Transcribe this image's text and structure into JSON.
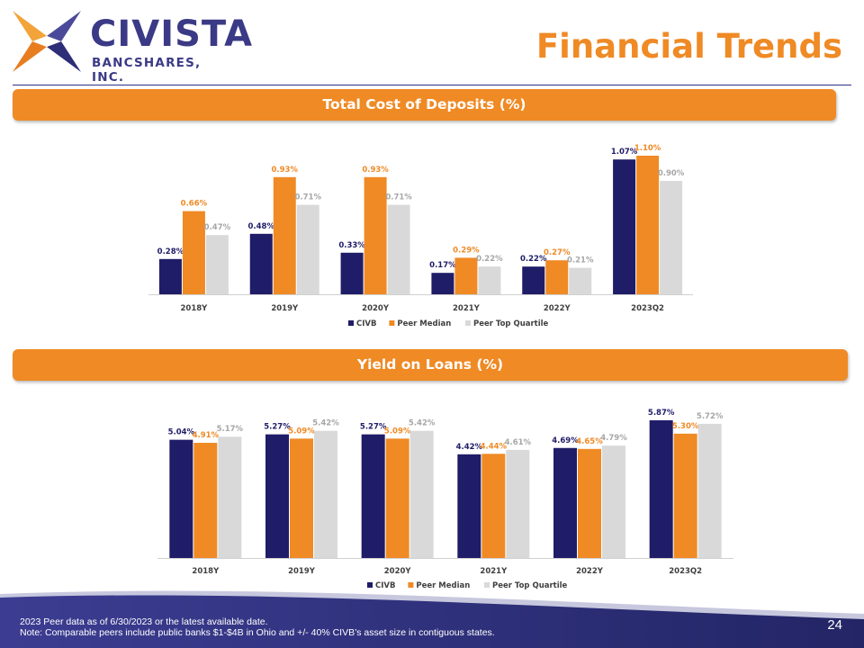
{
  "header": {
    "logo_name": "CIVISTA",
    "logo_sub": "BANCSHARES, INC.",
    "title": "Financial Trends"
  },
  "colors": {
    "civb": "#1f1c68",
    "peer_median": "#ef8a25",
    "peer_top_quartile": "#d9d9d9",
    "brand_orange": "#ef8a25",
    "brand_navy": "#2e2f86"
  },
  "chart_data": [
    {
      "type": "bar",
      "title": "Total Cost of Deposits (%)",
      "categories": [
        "2018Y",
        "2019Y",
        "2020Y",
        "2021Y",
        "2022Y",
        "2023Q2"
      ],
      "series": [
        {
          "name": "CIVB",
          "values": [
            0.28,
            0.48,
            0.33,
            0.17,
            0.22,
            1.07
          ],
          "labels": [
            "0.28%",
            "0.48%",
            "0.33%",
            "0.17%",
            "0.22%",
            "1.07%"
          ]
        },
        {
          "name": "Peer Median",
          "values": [
            0.66,
            0.93,
            0.93,
            0.29,
            0.27,
            1.1
          ],
          "labels": [
            "0.66%",
            "0.93%",
            "0.93%",
            "0.29%",
            "0.27%",
            "1.10%"
          ]
        },
        {
          "name": "Peer Top Quartile",
          "values": [
            0.47,
            0.71,
            0.71,
            0.22,
            0.21,
            0.9
          ],
          "labels": [
            "0.47%",
            "0.71%",
            "0.71%",
            "0.22%",
            "0.21%",
            "0.90%"
          ]
        }
      ],
      "ylim": [
        0,
        1.1
      ],
      "legend": "bottom"
    },
    {
      "type": "bar",
      "title": "Yield on Loans (%)",
      "categories": [
        "2018Y",
        "2019Y",
        "2020Y",
        "2021Y",
        "2022Y",
        "2023Q2"
      ],
      "series": [
        {
          "name": "CIVB",
          "values": [
            5.04,
            5.27,
            5.27,
            4.42,
            4.69,
            5.87
          ],
          "labels": [
            "5.04%",
            "5.27%",
            "5.27%",
            "4.42%",
            "4.69%",
            "5.87%"
          ]
        },
        {
          "name": "Peer Median",
          "values": [
            4.91,
            5.09,
            5.09,
            4.44,
            4.65,
            5.3
          ],
          "labels": [
            "4.91%",
            "5.09%",
            "5.09%",
            "4.44%",
            "4.65%",
            "5.30%"
          ]
        },
        {
          "name": "Peer Top Quartile",
          "values": [
            5.17,
            5.42,
            5.42,
            4.61,
            4.79,
            5.72
          ],
          "labels": [
            "5.17%",
            "5.42%",
            "5.42%",
            "4.61%",
            "4.79%",
            "5.72%"
          ]
        }
      ],
      "ylim": [
        0,
        5.87
      ],
      "legend": "bottom"
    }
  ],
  "footer": {
    "note1": "2023 Peer data as of 6/30/2023 or the latest available date.",
    "note2": "Note: Comparable peers include public banks $1-$4B in Ohio and +/- 40% CIVB’s asset size in contiguous states.",
    "page_number": "24"
  }
}
